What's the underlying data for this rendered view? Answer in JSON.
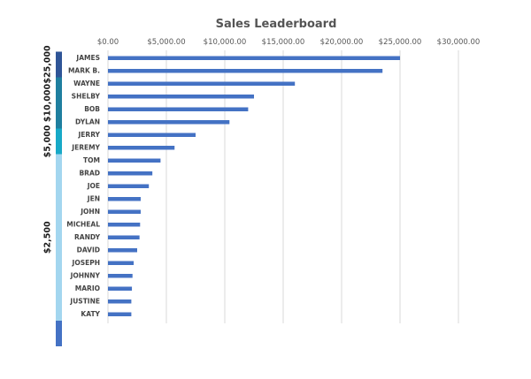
{
  "chart_data": {
    "type": "bar",
    "orientation": "horizontal",
    "title": "Sales Leaderboard",
    "xlim": [
      0,
      30000
    ],
    "x_ticks": [
      0,
      5000,
      10000,
      15000,
      20000,
      25000,
      30000
    ],
    "x_tick_labels": [
      "$0.00",
      "$5,000.00",
      "$10,000.00",
      "$15,000.00",
      "$20,000.00",
      "$25,000.00",
      "$30,000.00"
    ],
    "grid": true,
    "bar_color": "#4472c4",
    "categories": [
      "JAMES",
      "MARK B.",
      "WAYNE",
      "SHELBY",
      "BOB",
      "DYLAN",
      "JERRY",
      "JEREMY",
      "TOM",
      "BRAD",
      "JOE",
      "JEN",
      "JOHN",
      "MICHEAL",
      "RANDY",
      "DAVID",
      "JOSEPH",
      "JOHNNY",
      "MARIO",
      "JUSTINE",
      "KATY"
    ],
    "values": [
      25000,
      23500,
      16000,
      12500,
      12000,
      10400,
      7500,
      5700,
      4500,
      3800,
      3500,
      2800,
      2800,
      2750,
      2700,
      2500,
      2200,
      2100,
      2050,
      2000,
      2000
    ],
    "tiers": [
      {
        "label": "$25,000",
        "color": "#2f5597",
        "from": 0,
        "to": 1
      },
      {
        "label": "$10,000",
        "color": "#1f7f9f",
        "from": 2,
        "to": 5
      },
      {
        "label": "$5,000",
        "color": "#17a9c7",
        "from": 6,
        "to": 7
      },
      {
        "label": "$2,500",
        "color": "#a3d6ef",
        "from": 8,
        "to": 20
      },
      {
        "label": "",
        "color": "#4472c4",
        "from": 21,
        "to": 22
      }
    ]
  }
}
